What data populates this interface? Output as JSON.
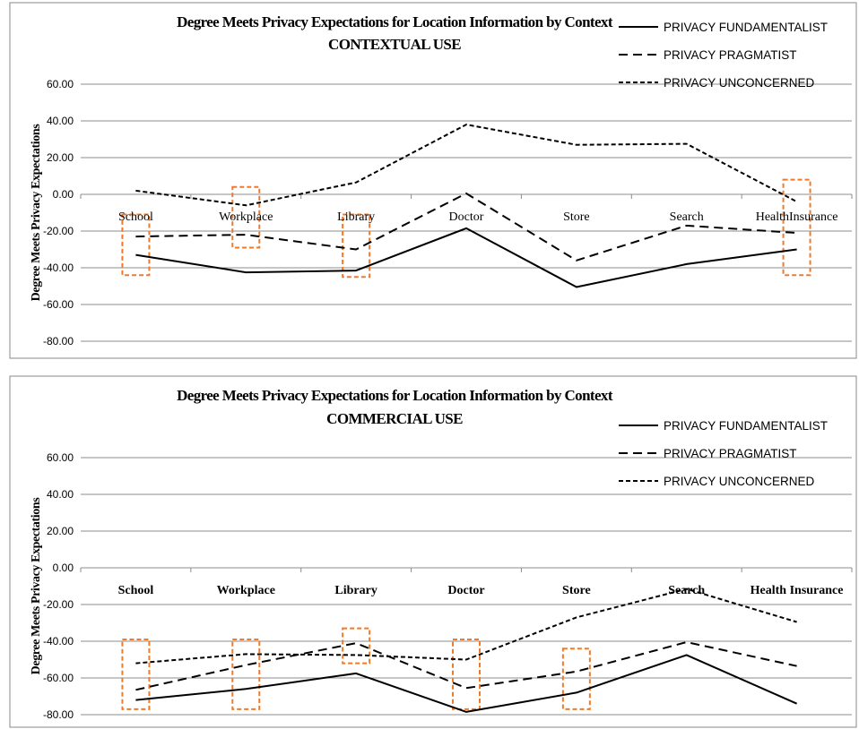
{
  "chart_data": [
    {
      "type": "line",
      "title": "Degree Meets Privacy Expectations for Location Information by Context",
      "subtitle": "CONTEXTUAL USE",
      "ylabel": "Degree Meets Privacy Expectations",
      "xlabel": "",
      "ylim": [
        -80,
        60
      ],
      "yticks": [
        "60.00",
        "40.00",
        "20.00",
        "0.00",
        "-20.00",
        "-40.00",
        "-60.00",
        "-80.00"
      ],
      "categories": [
        "School",
        "Workplace",
        "Library",
        "Doctor",
        "Store",
        "Search",
        "HealthInsurance"
      ],
      "category_labels_bold": false,
      "grid": true,
      "legend_position": "top-right",
      "series": [
        {
          "name": "PRIVACY FUNDAMENTALIST",
          "dash": "solid",
          "values": [
            -33,
            -42.5,
            -41.5,
            -18.5,
            -50.5,
            -38,
            -30
          ]
        },
        {
          "name": "PRIVACY PRAGMATIST",
          "dash": "dashed",
          "values": [
            -23,
            -22,
            -30,
            0.5,
            -36,
            -17,
            -21
          ]
        },
        {
          "name": "PRIVACY UNCONCERNED",
          "dash": "short-dash",
          "values": [
            2,
            -6,
            6.5,
            38,
            27,
            27.5,
            -4
          ]
        }
      ],
      "highlighted_categories": [
        "School",
        "Workplace",
        "Library",
        "HealthInsurance"
      ],
      "highlight_ranges": [
        [
          -44,
          -11
        ],
        [
          -29,
          4
        ],
        [
          -45,
          -11
        ],
        [
          -44,
          8
        ]
      ]
    },
    {
      "type": "line",
      "title": "Degree Meets Privacy Expectations for Location Information by Context",
      "subtitle": "COMMERCIAL USE",
      "ylabel": "Degree Meets Privacy Expectations",
      "xlabel": "",
      "ylim": [
        -80,
        60
      ],
      "yticks": [
        "60.00",
        "40.00",
        "20.00",
        "0.00",
        "-20.00",
        "-40.00",
        "-60.00",
        "-80.00"
      ],
      "categories": [
        "School",
        "Workplace",
        "Library",
        "Doctor",
        "Store",
        "Search",
        "Health Insurance"
      ],
      "category_labels_bold": true,
      "grid": true,
      "legend_position": "top-right",
      "series": [
        {
          "name": "PRIVACY FUNDAMENTALIST",
          "dash": "solid",
          "values": [
            -72,
            -66,
            -57.5,
            -78.5,
            -68,
            -47.5,
            -74
          ]
        },
        {
          "name": "PRIVACY PRAGMATIST",
          "dash": "dashed",
          "values": [
            -66.5,
            -53,
            -41,
            -65.5,
            -56.5,
            -40.5,
            -53.5
          ]
        },
        {
          "name": "PRIVACY UNCONCERNED",
          "dash": "short-dash",
          "values": [
            -52,
            -47,
            -47.5,
            -50,
            -27,
            -11.5,
            -29.5
          ]
        }
      ],
      "highlighted_categories": [
        "School",
        "Workplace",
        "Library",
        "Doctor",
        "Store"
      ],
      "highlight_ranges": [
        [
          -77,
          -39
        ],
        [
          -77,
          -39
        ],
        [
          -52,
          -33
        ],
        [
          -77,
          -39
        ],
        [
          -77,
          -44
        ]
      ]
    }
  ]
}
